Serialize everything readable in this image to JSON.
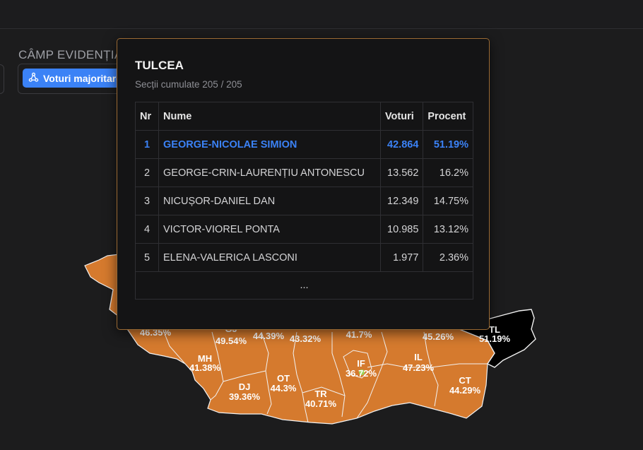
{
  "field_label": "CÂMP EVIDENȚIAT",
  "mode_button": {
    "label": "Voturi majoritare",
    "icon": "network-icon"
  },
  "colors": {
    "county_fill": "#d57a2e",
    "selected_fill": "#000000",
    "accent": "#3b82f6"
  },
  "tooltip": {
    "title": "TULCEA",
    "subtitle": "Secții cumulate 205 / 205",
    "columns": [
      "Nr",
      "Nume",
      "Voturi",
      "Procent"
    ],
    "rows": [
      {
        "nr": "1",
        "name": "GEORGE-NICOLAE SIMION",
        "votes": "42.864",
        "pct": "51.19%",
        "leading": true
      },
      {
        "nr": "2",
        "name": "GEORGE-CRIN-LAURENȚIU ANTONESCU",
        "votes": "13.562",
        "pct": "16.2%"
      },
      {
        "nr": "3",
        "name": "NICUȘOR-DANIEL DAN",
        "votes": "12.349",
        "pct": "14.75%"
      },
      {
        "nr": "4",
        "name": "VICTOR-VIOREL PONTA",
        "votes": "10.985",
        "pct": "13.12%"
      },
      {
        "nr": "5",
        "name": "ELENA-VALERICA LASCONI",
        "votes": "1.977",
        "pct": "2.36%"
      }
    ],
    "more": "..."
  },
  "map_labels": [
    {
      "code": "",
      "pct": "46.35%"
    },
    {
      "code": "GJ",
      "pct": "49.54%"
    },
    {
      "code": "",
      "pct": "44.39%"
    },
    {
      "code": "",
      "pct": "43.32%"
    },
    {
      "code": "",
      "pct": "41.7%"
    },
    {
      "code": "",
      "pct": "45.26%"
    },
    {
      "code": "TL",
      "pct": "51.19%"
    },
    {
      "code": "MH",
      "pct": "41.38%"
    },
    {
      "code": "DJ",
      "pct": "39.36%"
    },
    {
      "code": "OT",
      "pct": "44.3%"
    },
    {
      "code": "TR",
      "pct": "40.71%"
    },
    {
      "code": "IF",
      "pct": "36.72%"
    },
    {
      "code": "IL",
      "pct": "47.23%"
    },
    {
      "code": "CT",
      "pct": "44.29%"
    }
  ]
}
